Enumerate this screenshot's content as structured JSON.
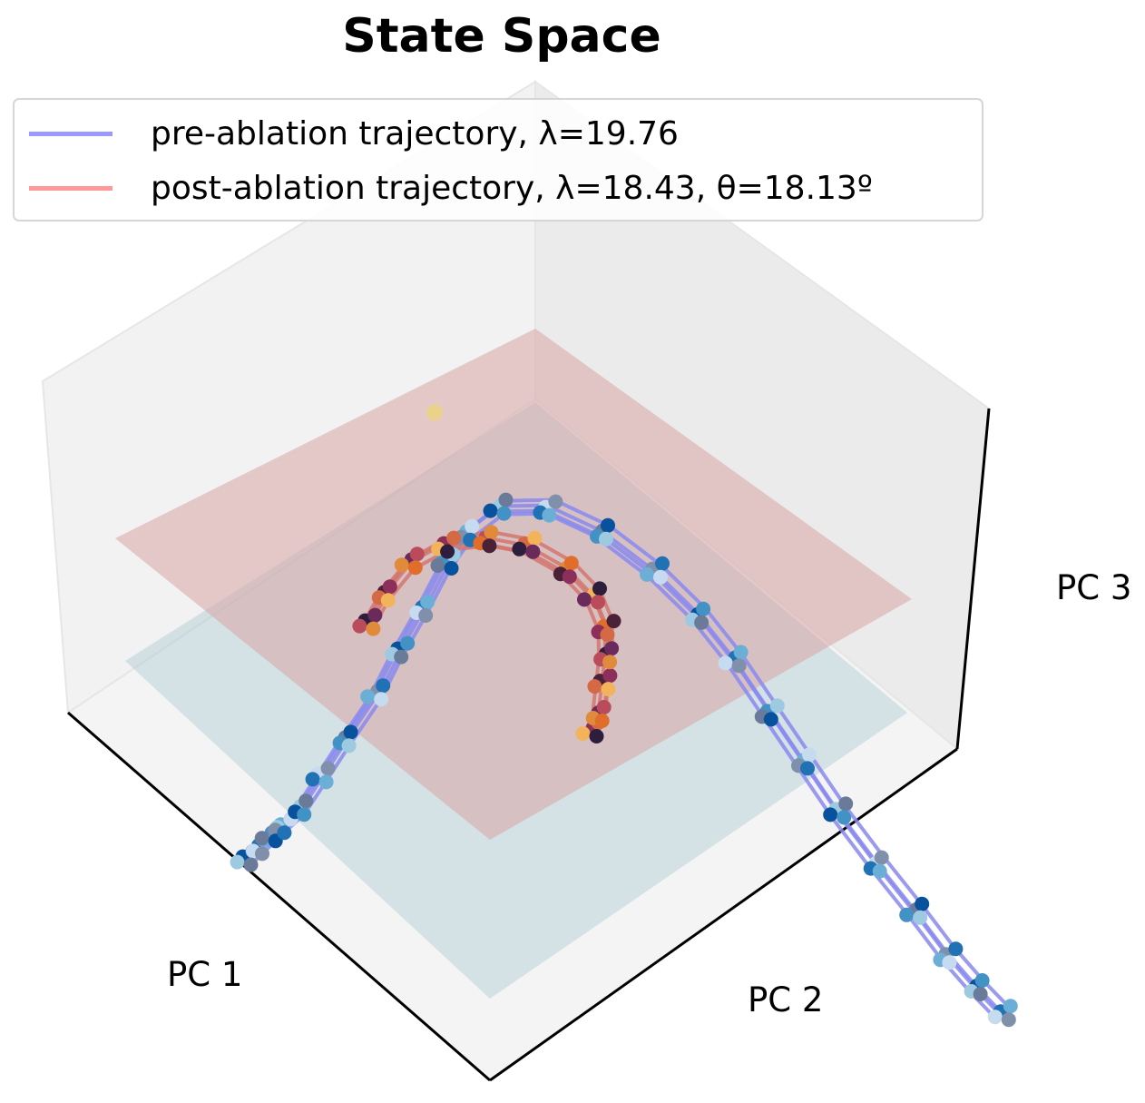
{
  "chart_data": {
    "type": "scatter",
    "title": "State Space",
    "xlabel": "PC 1",
    "ylabel": "PC 2",
    "zlabel": "PC 3",
    "grid": false,
    "legend_position": "top-left",
    "series": [
      {
        "name": "pre-ablation trajectory, λ=19.76",
        "color": "#9999ff",
        "marker_colormap": "Blues",
        "line": true,
        "points_note_units": "PC1, PC2, PC3 (approximate, unitless principal-component scores)",
        "points": [
          [
            -0.95,
            0.62,
            -0.2
          ],
          [
            -0.9,
            0.58,
            -0.19
          ],
          [
            -0.86,
            0.55,
            -0.18
          ],
          [
            -0.82,
            0.52,
            -0.17
          ],
          [
            -0.76,
            0.48,
            -0.15
          ],
          [
            -0.68,
            0.4,
            -0.12
          ],
          [
            -0.58,
            0.3,
            -0.08
          ],
          [
            -0.46,
            0.18,
            -0.04
          ],
          [
            -0.36,
            0.06,
            0.0
          ],
          [
            -0.26,
            -0.06,
            0.02
          ],
          [
            -0.15,
            -0.2,
            0.04
          ],
          [
            -0.06,
            -0.3,
            0.05
          ],
          [
            0.05,
            -0.38,
            0.06
          ],
          [
            0.18,
            -0.4,
            0.05
          ],
          [
            0.3,
            -0.34,
            0.03
          ],
          [
            0.4,
            -0.24,
            0.0
          ],
          [
            0.47,
            -0.12,
            -0.02
          ],
          [
            0.52,
            0.0,
            -0.05
          ],
          [
            0.56,
            0.14,
            -0.08
          ],
          [
            0.6,
            0.28,
            -0.11
          ],
          [
            0.64,
            0.42,
            -0.14
          ],
          [
            0.69,
            0.56,
            -0.17
          ],
          [
            0.74,
            0.7,
            -0.19
          ],
          [
            0.78,
            0.82,
            -0.21
          ],
          [
            0.82,
            0.92,
            -0.22
          ],
          [
            0.86,
            1.0,
            -0.23
          ]
        ]
      },
      {
        "name": "post-ablation trajectory, λ=18.43, θ=18.13º",
        "color": "#ff9999",
        "marker_colormap": "inferno",
        "line": true,
        "points_note_units": "PC1, PC2, PC3 (approximate, unitless principal-component scores)",
        "points": [
          [
            -0.42,
            0.0,
            0.02
          ],
          [
            -0.34,
            -0.1,
            0.03
          ],
          [
            -0.24,
            -0.2,
            0.04
          ],
          [
            -0.13,
            -0.26,
            0.05
          ],
          [
            -0.02,
            -0.28,
            0.05
          ],
          [
            0.08,
            -0.26,
            0.05
          ],
          [
            0.16,
            -0.2,
            0.04
          ],
          [
            0.2,
            -0.12,
            0.03
          ],
          [
            0.2,
            -0.03,
            0.02
          ],
          [
            0.17,
            0.06,
            0.01
          ],
          [
            0.13,
            0.15,
            0.0
          ],
          [
            0.09,
            0.24,
            -0.01
          ],
          [
            0.05,
            0.3,
            -0.01
          ]
        ]
      }
    ],
    "planes": [
      {
        "color": "#d9a5a6",
        "role": "pre-ablation subspace plane"
      },
      {
        "color": "#a7c6cf",
        "role": "post-ablation subspace plane"
      }
    ],
    "outlier_point": {
      "color": "#ebd28a",
      "pc": [
        -0.1,
        -0.42,
        0.35
      ]
    }
  }
}
